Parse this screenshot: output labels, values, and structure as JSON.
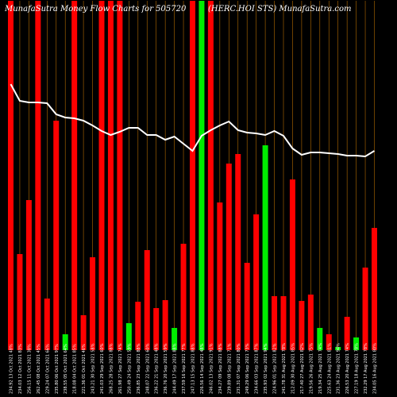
{
  "chart_data": {
    "type": "bar",
    "title_left": "MunafaSutra  Money  Flow  Charts  for  505720",
    "title_right": "(HERC.HOI                                  STS)  MunafaSutra.com",
    "bar_color_up": "#00ee00",
    "bar_color_down": "#ff0000",
    "line_color": "#ffffff",
    "grid_color": "#b36b00",
    "background": "#000000",
    "ylim": [
      0,
      440
    ],
    "line_ylim": [
      0,
      440
    ],
    "categories": [
      "234.92 13 Oct 2021 48%",
      "234.03 12 Oct 2021 83%",
      "256.15 11 Oct 2021 38%",
      "262.45 08 Oct 2021 45%",
      "229.24 07 Oct 2021 66%",
      "235.80 06 Oct 2021 97%",
      "238.55 05 Oct 2021 64%",
      "218.08 04 Oct 2021 85%",
      "221.36 01 Oct 2021 46%",
      "243.21 30 Sep 2021 58%",
      "241.03 29 Sep 2021 60%",
      "268.25 28 Sep 2021 88%",
      "261.98 27 Sep 2021 74%",
      "250.49 24 Sep 2021 59%",
      "236.85 23 Sep 2021 88%",
      "248.07 22 Sep 2021 60%",
      "236.22 21 Sep 2021 48%",
      "236.76 20 Sep 2021 59%",
      "244.49 17 Sep 2021 88%",
      "237.59 16 Sep 2021 77%",
      "247.13 15 Sep 2021 88%",
      "226.56 14 Sep 2021 48%",
      "246.02 13 Sep 2021 91%",
      "234.27 09 Sep 2021 88%",
      "239.89 08 Sep 2021 71%",
      "231.31 07 Sep 2021 80%",
      "249.29 06 Sep 2021 73%",
      "234.66 03 Sep 2021 87%",
      "235.93 02 Sep 2021 94%",
      "224.96 01 Sep 2021 82%",
      "241.78 31 Aug 2021 78%",
      "212.09 30 Aug 2021 85%",
      "217.40 27 Aug 2021 82%",
      "219.56 26 Aug 2021 75%",
      "219.34 25 Aug 2021 74%",
      "225.63 24 Aug 2021 81%",
      "231.36 23 Aug 2021 94%",
      "226.53 20 Aug 2021 74%",
      "227.19 18 Aug 2021 78%",
      "232.29 17 Aug 2021 78%",
      "234.05 16 Aug 2021 80%"
    ],
    "values": [
      440,
      121,
      189,
      440,
      65,
      289,
      20,
      440,
      44,
      117,
      440,
      440,
      440,
      34,
      61,
      126,
      53,
      63,
      28,
      134,
      440,
      440,
      440,
      186,
      235,
      247,
      110,
      171,
      258,
      68,
      68,
      215,
      62,
      70,
      28,
      20,
      4,
      42,
      16,
      104,
      154
    ],
    "directions": [
      "down",
      "down",
      "down",
      "down",
      "down",
      "down",
      "up",
      "down",
      "down",
      "down",
      "down",
      "down",
      "down",
      "up",
      "down",
      "down",
      "down",
      "down",
      "up",
      "down",
      "down",
      "up",
      "down",
      "down",
      "down",
      "down",
      "down",
      "down",
      "up",
      "down",
      "down",
      "down",
      "down",
      "down",
      "up",
      "down",
      "up",
      "down",
      "up",
      "down",
      "down"
    ],
    "line": [
      335,
      314,
      312,
      312,
      311,
      297,
      293,
      292,
      289,
      283,
      276,
      271,
      275,
      280,
      280,
      271,
      271,
      265,
      269,
      260,
      251,
      270,
      277,
      283,
      288,
      277,
      274,
      273,
      271,
      276,
      270,
      254,
      246,
      249,
      249,
      248,
      247,
      245,
      245,
      244,
      251
    ]
  }
}
